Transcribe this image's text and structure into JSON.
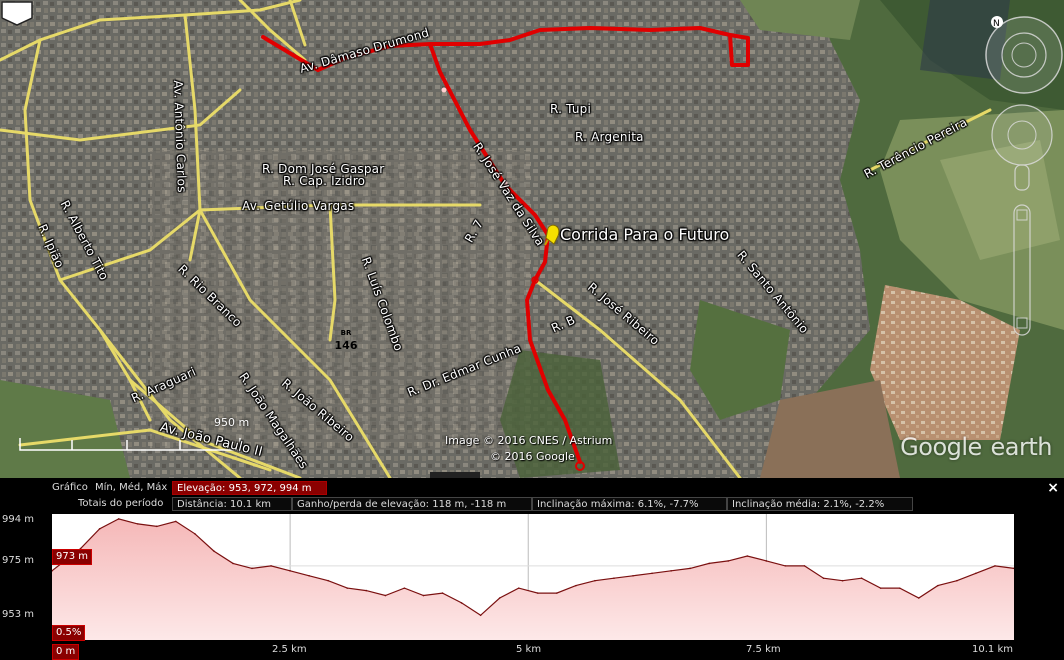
{
  "map": {
    "placemark_label": "Corrida Para o Futuro",
    "credits": {
      "line1": "Image © 2016 CNES / Astrium",
      "line2": "© 2016 Google"
    },
    "logo": {
      "brand": "Google",
      "product": "earth"
    },
    "scale_label": "950 m",
    "shield_label": "146",
    "shield_top": "BR",
    "streets": [
      {
        "name": "Av. Dâmaso Drumond"
      },
      {
        "name": "R. Tupi"
      },
      {
        "name": "R. Argenita"
      },
      {
        "name": "R. Terêncio Pereira"
      },
      {
        "name": "Av. Antônio Carlos"
      },
      {
        "name": "R. Dom José Gaspar"
      },
      {
        "name": "R. Cap. Izidro"
      },
      {
        "name": "Av. Getúlio Vargas"
      },
      {
        "name": "R. José Vaz da Silva"
      },
      {
        "name": "R. Alberto Tito"
      },
      {
        "name": "R. Ipião"
      },
      {
        "name": "R. Rio Branco"
      },
      {
        "name": "R. Luís Colombo"
      },
      {
        "name": "R. 7"
      },
      {
        "name": "R. José Ribeiro"
      },
      {
        "name": "R. Santo Antônio"
      },
      {
        "name": "R. B"
      },
      {
        "name": "R. Dr. Edmar Cunha"
      },
      {
        "name": "R. Araguari"
      },
      {
        "name": "R. João Ribeiro"
      },
      {
        "name": "R. João Magalhães"
      },
      {
        "name": "Av. João Paulo II"
      }
    ],
    "colors": {
      "route": "#e00000",
      "roads": "#e8d96a"
    }
  },
  "profile": {
    "row1_label": "Gráfico",
    "row1_stats": "Mín, Méd, Máx",
    "elevation_summary": "Elevação: 953, 972, 994 m",
    "row2_label": "Totais do período",
    "distance": "Distância: 10.1 km",
    "gain_loss": "Ganho/perda de elevação: 118 m, -118 m",
    "max_slope": "Inclinação máxima: 6.1%, -7.7%",
    "avg_slope": "Inclinação média: 2.1%, -2.2%",
    "cursor_elev": "973 m",
    "cursor_slope": "0.5%",
    "close": "×",
    "y_ticks": [
      "994 m",
      "975 m",
      "953 m"
    ],
    "x_ticks": [
      "0 m",
      "2.5 km",
      "5 km",
      "7.5 km",
      "10.1 km"
    ]
  },
  "chart_data": {
    "type": "area",
    "xlabel": "",
    "ylabel": "",
    "ylim": [
      945,
      996
    ],
    "xlim": [
      0,
      10.1
    ],
    "x_unit": "km",
    "y_unit": "m",
    "series": [
      {
        "x": [
          0,
          0.3,
          0.5,
          0.7,
          0.9,
          1.1,
          1.3,
          1.5,
          1.7,
          1.9,
          2.1,
          2.3,
          2.5,
          2.7,
          2.9,
          3.1,
          3.3,
          3.5,
          3.7,
          3.9,
          4.1,
          4.3,
          4.5,
          4.7,
          4.9,
          5.1,
          5.3,
          5.5,
          5.7,
          5.9,
          6.1,
          6.3,
          6.5,
          6.7,
          6.9,
          7.1,
          7.3,
          7.5,
          7.7,
          7.9,
          8.1,
          8.3,
          8.5,
          8.7,
          8.9,
          9.1,
          9.3,
          9.5,
          9.7,
          9.9,
          10.1
        ],
        "values": [
          973,
          982,
          990,
          994,
          992,
          991,
          993,
          988,
          981,
          976,
          974,
          975,
          973,
          971,
          969,
          966,
          965,
          963,
          966,
          963,
          964,
          960,
          955,
          962,
          966,
          964,
          964,
          967,
          969,
          970,
          971,
          972,
          973,
          974,
          976,
          977,
          979,
          977,
          975,
          975,
          970,
          969,
          970,
          966,
          966,
          962,
          967,
          969,
          972,
          975,
          974
        ]
      }
    ],
    "grid": true
  }
}
